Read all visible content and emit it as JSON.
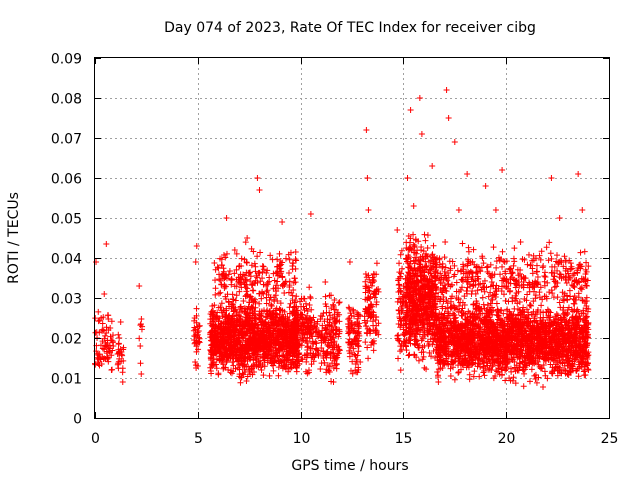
{
  "chart_data": {
    "type": "scatter",
    "title": "Day 074 of 2023, Rate Of TEC Index for receiver cibg",
    "xlabel": "GPS time / hours",
    "ylabel": "ROTI / TECUs",
    "xlim": [
      0,
      25
    ],
    "ylim": [
      0,
      0.09
    ],
    "xticks": [
      "0",
      "5",
      "10",
      "15",
      "20",
      "25"
    ],
    "yticks": [
      "0",
      "0.01",
      "0.02",
      "0.03",
      "0.04",
      "0.05",
      "0.06",
      "0.07",
      "0.08",
      "0.09"
    ],
    "grid": true,
    "marker": "plus",
    "color": "#ff0000",
    "series": [
      {
        "values": [
          {
            "x": 0.05,
            "y": 0.039
          },
          {
            "x": 0.1,
            "y": 0.02
          },
          {
            "x": 0.2,
            "y": 0.015
          },
          {
            "x": 0.3,
            "y": 0.025
          },
          {
            "x": 0.45,
            "y": 0.031
          },
          {
            "x": 0.5,
            "y": 0.018
          },
          {
            "x": 0.55,
            "y": 0.0435
          },
          {
            "x": 0.65,
            "y": 0.022
          },
          {
            "x": 0.8,
            "y": 0.012
          },
          {
            "x": 1.1,
            "y": 0.016
          },
          {
            "x": 1.25,
            "y": 0.024
          },
          {
            "x": 1.35,
            "y": 0.009
          },
          {
            "x": 2.15,
            "y": 0.033
          },
          {
            "x": 2.2,
            "y": 0.018
          },
          {
            "x": 2.25,
            "y": 0.011
          },
          {
            "x": 4.85,
            "y": 0.025
          },
          {
            "x": 4.9,
            "y": 0.039
          },
          {
            "x": 4.95,
            "y": 0.043
          },
          {
            "x": 5.0,
            "y": 0.013
          },
          {
            "x": 5.9,
            "y": 0.019
          },
          {
            "x": 6.4,
            "y": 0.05
          },
          {
            "x": 6.8,
            "y": 0.042
          },
          {
            "x": 7.4,
            "y": 0.045
          },
          {
            "x": 7.9,
            "y": 0.06
          },
          {
            "x": 8.0,
            "y": 0.057
          },
          {
            "x": 8.1,
            "y": 0.012
          },
          {
            "x": 8.6,
            "y": 0.028
          },
          {
            "x": 9.1,
            "y": 0.049
          },
          {
            "x": 9.6,
            "y": 0.038
          },
          {
            "x": 10.1,
            "y": 0.021
          },
          {
            "x": 10.5,
            "y": 0.051
          },
          {
            "x": 10.8,
            "y": 0.017
          },
          {
            "x": 11.2,
            "y": 0.034
          },
          {
            "x": 11.6,
            "y": 0.009
          },
          {
            "x": 12.4,
            "y": 0.039
          },
          {
            "x": 12.9,
            "y": 0.014
          },
          {
            "x": 13.2,
            "y": 0.072
          },
          {
            "x": 13.25,
            "y": 0.06
          },
          {
            "x": 13.3,
            "y": 0.052
          },
          {
            "x": 13.5,
            "y": 0.019
          },
          {
            "x": 13.7,
            "y": 0.029
          },
          {
            "x": 14.7,
            "y": 0.047
          },
          {
            "x": 15.0,
            "y": 0.021
          },
          {
            "x": 15.2,
            "y": 0.06
          },
          {
            "x": 15.35,
            "y": 0.077
          },
          {
            "x": 15.5,
            "y": 0.053
          },
          {
            "x": 15.8,
            "y": 0.08
          },
          {
            "x": 15.9,
            "y": 0.071
          },
          {
            "x": 16.1,
            "y": 0.041
          },
          {
            "x": 16.4,
            "y": 0.063
          },
          {
            "x": 16.8,
            "y": 0.032
          },
          {
            "x": 17.1,
            "y": 0.082
          },
          {
            "x": 17.2,
            "y": 0.075
          },
          {
            "x": 17.5,
            "y": 0.069
          },
          {
            "x": 17.7,
            "y": 0.052
          },
          {
            "x": 18.1,
            "y": 0.061
          },
          {
            "x": 18.5,
            "y": 0.018
          },
          {
            "x": 19.0,
            "y": 0.058
          },
          {
            "x": 19.3,
            "y": 0.034
          },
          {
            "x": 19.5,
            "y": 0.052
          },
          {
            "x": 19.8,
            "y": 0.062
          },
          {
            "x": 20.2,
            "y": 0.026
          },
          {
            "x": 20.7,
            "y": 0.044
          },
          {
            "x": 21.2,
            "y": 0.014
          },
          {
            "x": 21.8,
            "y": 0.038
          },
          {
            "x": 22.2,
            "y": 0.06
          },
          {
            "x": 22.6,
            "y": 0.05
          },
          {
            "x": 23.2,
            "y": 0.022
          },
          {
            "x": 23.5,
            "y": 0.061
          },
          {
            "x": 23.7,
            "y": 0.052
          },
          {
            "x": 23.9,
            "y": 0.028
          },
          {
            "x": 24.0,
            "y": 0.012
          }
        ],
        "clusters": [
          {
            "x": [
              0.0,
              0.9
            ],
            "y": [
              0.009,
              0.03
            ],
            "n": 70
          },
          {
            "x": [
              1.1,
              1.4
            ],
            "y": [
              0.009,
              0.022
            ],
            "n": 25
          },
          {
            "x": [
              2.1,
              2.3
            ],
            "y": [
              0.011,
              0.032
            ],
            "n": 7
          },
          {
            "x": [
              4.8,
              5.1
            ],
            "y": [
              0.01,
              0.03
            ],
            "n": 35
          },
          {
            "x": [
              5.6,
              9.9
            ],
            "y": [
              0.008,
              0.032
            ],
            "n": 1500
          },
          {
            "x": [
              5.8,
              9.8
            ],
            "y": [
              0.025,
              0.045
            ],
            "n": 220
          },
          {
            "x": [
              9.6,
              10.6
            ],
            "y": [
              0.008,
              0.035
            ],
            "n": 160
          },
          {
            "x": [
              10.6,
              11.2
            ],
            "y": [
              0.01,
              0.03
            ],
            "n": 60
          },
          {
            "x": [
              11.2,
              11.9
            ],
            "y": [
              0.006,
              0.035
            ],
            "n": 120
          },
          {
            "x": [
              12.3,
              12.9
            ],
            "y": [
              0.008,
              0.032
            ],
            "n": 90
          },
          {
            "x": [
              13.1,
              13.8
            ],
            "y": [
              0.012,
              0.043
            ],
            "n": 110
          },
          {
            "x": [
              14.7,
              15.1
            ],
            "y": [
              0.008,
              0.045
            ],
            "n": 70
          },
          {
            "x": [
              15.1,
              16.6
            ],
            "y": [
              0.01,
              0.05
            ],
            "n": 700
          },
          {
            "x": [
              16.6,
              24.0
            ],
            "y": [
              0.007,
              0.032
            ],
            "n": 2400
          },
          {
            "x": [
              16.6,
              24.0
            ],
            "y": [
              0.025,
              0.045
            ],
            "n": 420
          }
        ]
      }
    ]
  }
}
